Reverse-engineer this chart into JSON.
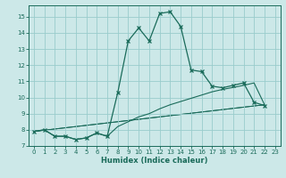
{
  "xlabel": "Humidex (Indice chaleur)",
  "bg_color": "#cce8e8",
  "grid_color": "#99cccc",
  "line_color": "#1a6b5a",
  "xlim": [
    -0.5,
    23.5
  ],
  "ylim": [
    7,
    15.7
  ],
  "xticks": [
    0,
    1,
    2,
    3,
    4,
    5,
    6,
    7,
    8,
    9,
    10,
    11,
    12,
    13,
    14,
    15,
    16,
    17,
    18,
    19,
    20,
    21,
    22,
    23
  ],
  "yticks": [
    7,
    8,
    9,
    10,
    11,
    12,
    13,
    14,
    15
  ],
  "series1_x": [
    0,
    1,
    2,
    3,
    4,
    5,
    6,
    7,
    8,
    9,
    10,
    11,
    12,
    13,
    14,
    15,
    16,
    17,
    18,
    19,
    20,
    21,
    22
  ],
  "series1_y": [
    7.9,
    8.0,
    7.6,
    7.6,
    7.4,
    7.5,
    7.8,
    7.6,
    10.3,
    13.5,
    14.3,
    13.5,
    15.2,
    15.3,
    14.4,
    11.7,
    11.6,
    10.7,
    10.6,
    10.75,
    10.9,
    9.7,
    9.5
  ],
  "series2_x": [
    0,
    1,
    2,
    3,
    4,
    5,
    6,
    7,
    8,
    9,
    10,
    11,
    12,
    13,
    14,
    15,
    16,
    17,
    18,
    19,
    20,
    21,
    22
  ],
  "series2_y": [
    7.9,
    8.0,
    7.6,
    7.6,
    7.4,
    7.5,
    7.8,
    7.6,
    8.2,
    8.5,
    8.8,
    9.0,
    9.3,
    9.55,
    9.75,
    9.95,
    10.15,
    10.35,
    10.5,
    10.62,
    10.75,
    10.9,
    9.55
  ],
  "line1_x": [
    0,
    22
  ],
  "line1_y": [
    7.9,
    9.55
  ],
  "line2_x": [
    0,
    22
  ],
  "line2_y": [
    7.9,
    9.55
  ]
}
